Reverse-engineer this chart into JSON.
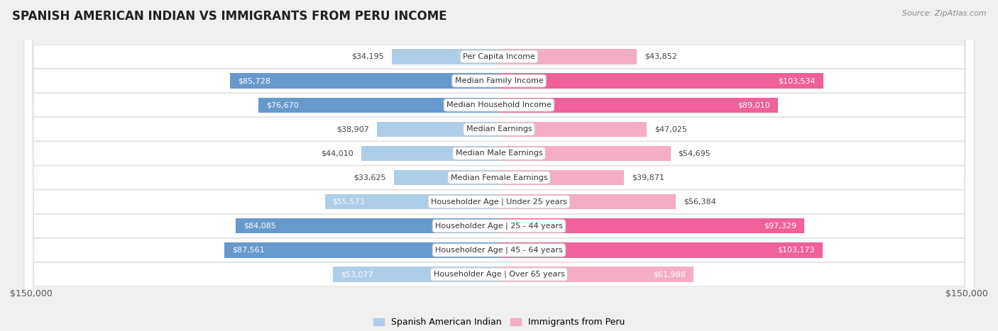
{
  "title": "SPANISH AMERICAN INDIAN VS IMMIGRANTS FROM PERU INCOME",
  "source": "Source: ZipAtlas.com",
  "categories": [
    "Per Capita Income",
    "Median Family Income",
    "Median Household Income",
    "Median Earnings",
    "Median Male Earnings",
    "Median Female Earnings",
    "Householder Age | Under 25 years",
    "Householder Age | 25 - 44 years",
    "Householder Age | 45 - 64 years",
    "Householder Age | Over 65 years"
  ],
  "spanish_values": [
    34195,
    85728,
    76670,
    38907,
    44010,
    33625,
    55573,
    84085,
    87561,
    53077
  ],
  "peru_values": [
    43852,
    103534,
    89010,
    47025,
    54695,
    39871,
    56384,
    97329,
    103173,
    61988
  ],
  "spanish_labels": [
    "$34,195",
    "$85,728",
    "$76,670",
    "$38,907",
    "$44,010",
    "$33,625",
    "$55,573",
    "$84,085",
    "$87,561",
    "$53,077"
  ],
  "peru_labels": [
    "$43,852",
    "$103,534",
    "$89,010",
    "$47,025",
    "$54,695",
    "$39,871",
    "$56,384",
    "$97,329",
    "$103,173",
    "$61,988"
  ],
  "spanish_color_light": "#aecde8",
  "spanish_color_dark": "#6699cc",
  "peru_color_light": "#f5adc6",
  "peru_color_dark": "#f0609a",
  "max_value": 150000,
  "xlabel_left": "$150,000",
  "xlabel_right": "$150,000",
  "legend_spanish": "Spanish American Indian",
  "legend_peru": "Immigrants from Peru",
  "background_color": "#f0f0f0",
  "row_bg_color": "#ffffff",
  "title_fontsize": 12,
  "label_fontsize": 8,
  "category_fontsize": 8
}
